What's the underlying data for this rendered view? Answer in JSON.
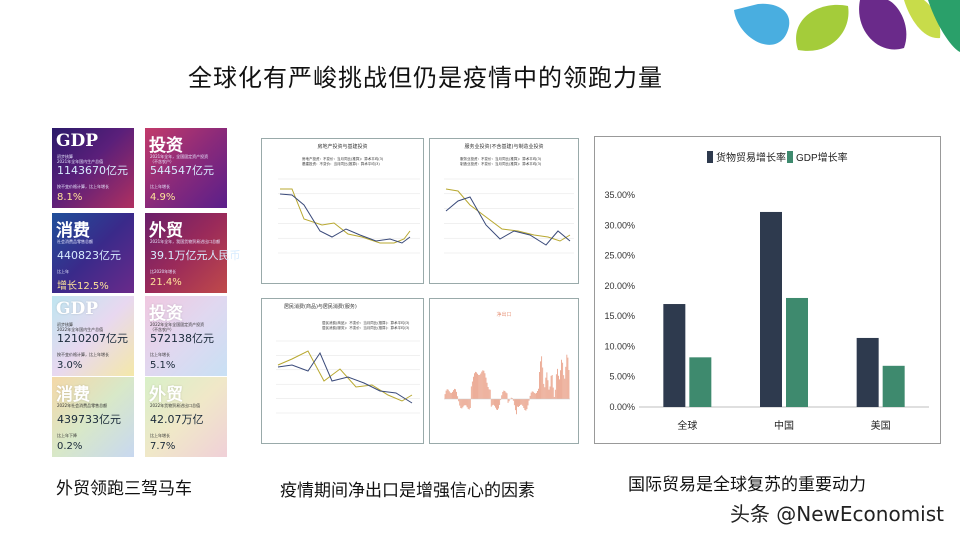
{
  "title": "全球化有严峻挑战但仍是疫情中的领跑力量",
  "captions": {
    "left": "外贸领跑三驾马车",
    "middle": "疫情期间净出口是增强信心的因素",
    "right": "国际贸易是全球复苏的重要动力"
  },
  "watermark": "头条 @NewEconomist",
  "cards": [
    {
      "head": "GDP",
      "line1": "初步核算",
      "line2": "2021年全年国内生产总值",
      "value": "1143670亿元",
      "line3": "按不变价格计算，比上年增长",
      "pct": "8.1%",
      "bg": "linear-gradient(135deg,#2a1a6a 0%,#5a1f7a 45%,#b03060 100%)",
      "style": "dark"
    },
    {
      "head": "投资",
      "line1": "2021年全年，全国固定资产投资",
      "line2": "（不含农户）",
      "value": "544547亿元",
      "line3": "比上年增长",
      "pct": "4.9%",
      "bg": "linear-gradient(135deg,#c23a6a 0%,#8a2a7a 50%,#5a1f8a 100%)",
      "style": "dark"
    },
    {
      "head": "消费",
      "line1": "社会消费品零售总额",
      "line2": "",
      "value": "440823亿元",
      "line3": "比上年",
      "pct": "增长12.5%",
      "bg": "linear-gradient(135deg,#1f4f9a 0%,#3a2a8a 50%,#6a2a8a 100%)",
      "style": "dark"
    },
    {
      "head": "外贸",
      "line1": "2021年全年，我国货物贸易进出口总额",
      "line2": "",
      "value": "39.1万亿元人民币",
      "line3": "比2020年增长",
      "pct": "21.4%",
      "bg": "linear-gradient(135deg,#6a1f6a 0%,#9a2a5a 50%,#c04a4a 100%)",
      "style": "dark"
    },
    {
      "head": "GDP",
      "line1": "初步核算",
      "line2": "2022年全年国内生产总值",
      "value": "1210207亿元",
      "line3": "按不变价格计算，比上年增长",
      "pct": "3.0%",
      "bg": "linear-gradient(135deg,#bfe6f0 0%,#e8d8f0 50%,#f4e8a8 100%)",
      "style": "light"
    },
    {
      "head": "投资",
      "line1": "2022年全年全国固定资产投资",
      "line2": "（不含农户）",
      "value": "572138亿元",
      "line3": "比上年增长",
      "pct": "5.1%",
      "bg": "linear-gradient(135deg,#f0c8e0 0%,#e0d8f0 50%,#c8e0f4 100%)",
      "style": "light"
    },
    {
      "head": "消费",
      "line1": "2022年社会消费品零售总额",
      "line2": "",
      "value": "439733亿元",
      "line3": "比上年下降",
      "pct": "0.2%",
      "bg": "linear-gradient(135deg,#f4d8a8 0%,#d8e8c8 50%,#c8d8f0 100%)",
      "style": "light"
    },
    {
      "head": "外贸",
      "line1": "2022年货物贸易进出口总值",
      "line2": "",
      "value": "42.07万亿",
      "line3": "比上年增长",
      "pct": "7.7%",
      "bg": "linear-gradient(135deg,#d8f0c8 0%,#f0e8c8 50%,#f0d0d8 100%)",
      "style": "light"
    }
  ],
  "mini_charts": [
    {
      "title": "房地产投资与基建投资",
      "legend": [
        "房地产投资：不变价：当月同比(推算)：算术平均(3)",
        "基建投资：不变价：当月同比(推算)：算术平均(3)"
      ],
      "colors": [
        "#b8a830",
        "#3a4a7a"
      ]
    },
    {
      "title": "服务业投资(不含基建)与制造业投资",
      "legend": [
        "服务业投资：不变价：当月同比(推算)：算术平均(3)",
        "制造业投资：不变价：当月同比(推算)：算术平均(3)"
      ],
      "colors": [
        "#b8a830",
        "#3a4a7a"
      ]
    },
    {
      "title": "居民消费(商品)与居民消费(服务)",
      "legend": [
        "居民消费(商品)：不变价：当月同比(推算)：算术平均(3)",
        "居民消费(服务)：不变价：当月同比(推算)：算术平均(3)"
      ],
      "colors": [
        "#b8a830",
        "#3a4a7a"
      ]
    },
    {
      "title": "净出口",
      "legend": [],
      "colors": [
        "#e89a80"
      ]
    }
  ],
  "chart_data": {
    "type": "bar",
    "categories": [
      "全球",
      "中国",
      "美国"
    ],
    "series": [
      {
        "name": "货物贸易增长率",
        "values": [
          17.0,
          32.2,
          11.4
        ],
        "color": "#2e3a4e"
      },
      {
        "name": "GDP增长率",
        "values": [
          8.2,
          18.0,
          6.8
        ],
        "color": "#3e8a6e"
      }
    ],
    "ylim": [
      0,
      35
    ],
    "yticks": [
      "0.00%",
      "5.00%",
      "10.00%",
      "15.00%",
      "20.00%",
      "25.00%",
      "30.00%",
      "35.00%"
    ],
    "legend_position": "top"
  },
  "deco_colors": [
    "#4ab0e0",
    "#9ac83a",
    "#6a2a8a",
    "#3aa06a"
  ]
}
